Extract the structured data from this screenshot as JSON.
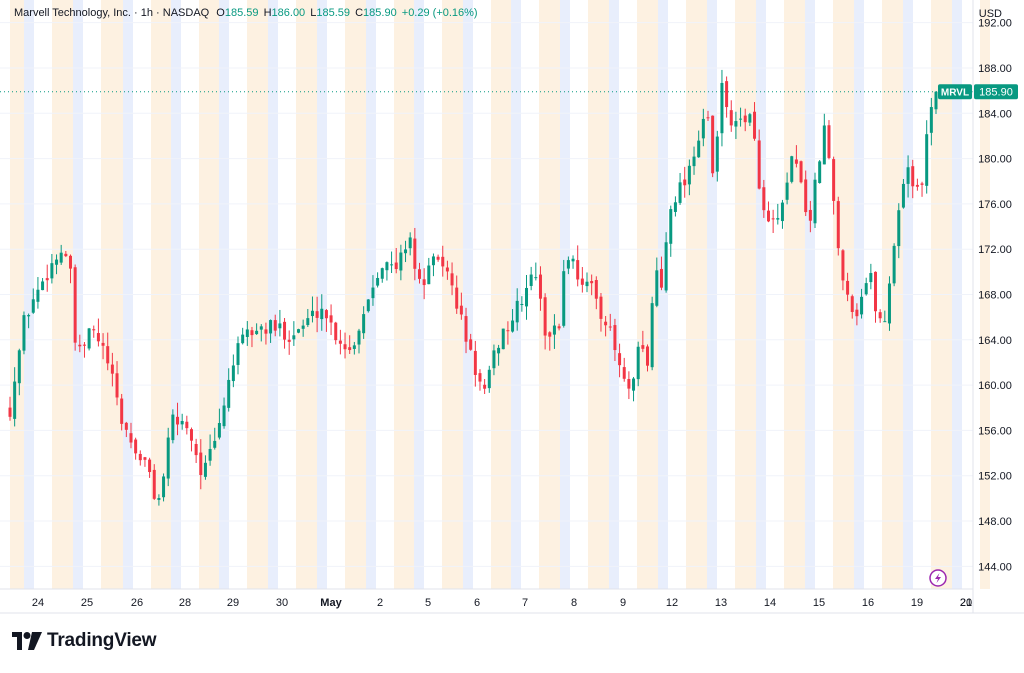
{
  "header": {
    "symbol_desc": "Marvell Technology, Inc. · 1h · NASDAQ",
    "o_label": "O",
    "o_value": "185.59",
    "h_label": "H",
    "h_value": "186.00",
    "l_label": "L",
    "l_value": "185.59",
    "c_label": "C",
    "c_value": "185.90",
    "change": "+0.29 (+0.16%)"
  },
  "currency": "USD",
  "brand": {
    "name": "TradingView",
    "icon": "tradingview-logo-icon"
  },
  "price_tag": {
    "symbol": "MRVL",
    "price": "185.90"
  },
  "colors": {
    "up": "#089981",
    "down": "#f23645",
    "premarket_band": "#fdf1e1",
    "afterhours_band": "#e8eefc",
    "grid": "#f0f3fa",
    "axis_text": "#131722",
    "accent": "#9c27b0"
  },
  "chart_data": {
    "type": "candlestick",
    "title": "",
    "symbol": "MRVL",
    "interval": "1h",
    "exchange": "NASDAQ",
    "ylim": [
      142,
      194
    ],
    "y_ticks": [
      "192.00",
      "188.00",
      "184.00",
      "180.00",
      "176.00",
      "172.00",
      "168.00",
      "164.00",
      "160.00",
      "156.00",
      "152.00",
      "148.00",
      "144.00"
    ],
    "x_ticks": [
      "24",
      "25",
      "26",
      "28",
      "29",
      "30",
      "May",
      "2",
      "5",
      "6",
      "7",
      "8",
      "9",
      "12",
      "13",
      "14",
      "15",
      "16",
      "19",
      "20",
      "21"
    ],
    "legend": "none",
    "grid": true,
    "last_price": 185.9,
    "close_path": [
      [
        0,
        158.0
      ],
      [
        2,
        166.0
      ],
      [
        5,
        170.0
      ],
      [
        7,
        172.0
      ],
      [
        8,
        171.0
      ],
      [
        9,
        162.0
      ],
      [
        11,
        165.0
      ],
      [
        13,
        162.5
      ],
      [
        15,
        157.0
      ],
      [
        17,
        154.0
      ],
      [
        18,
        153.5
      ],
      [
        20,
        149.5
      ],
      [
        22,
        157.0
      ],
      [
        24,
        156.5
      ],
      [
        26,
        152.0
      ],
      [
        28,
        155.5
      ],
      [
        30,
        162.0
      ],
      [
        32,
        164.5
      ],
      [
        34,
        165.0
      ],
      [
        36,
        165.0
      ],
      [
        38,
        164.5
      ],
      [
        40,
        165.5
      ],
      [
        42,
        167.0
      ],
      [
        44,
        164.5
      ],
      [
        46,
        163.0
      ],
      [
        48,
        167.0
      ],
      [
        50,
        171.0
      ],
      [
        52,
        170.0
      ],
      [
        54,
        173.5
      ],
      [
        55,
        168.5
      ],
      [
        57,
        170.5
      ],
      [
        58,
        171.5
      ],
      [
        60,
        168.0
      ],
      [
        62,
        163.0
      ],
      [
        64,
        159.0
      ],
      [
        66,
        164.0
      ],
      [
        68,
        166.0
      ],
      [
        70,
        169.0
      ],
      [
        71,
        170.0
      ],
      [
        72,
        165.0
      ],
      [
        74,
        164.5
      ],
      [
        75,
        172.0
      ],
      [
        77,
        169.5
      ],
      [
        79,
        168.0
      ],
      [
        81,
        164.5
      ],
      [
        83,
        160.0
      ],
      [
        84,
        159.0
      ],
      [
        85,
        164.0
      ],
      [
        86,
        161.0
      ],
      [
        87,
        170.5
      ],
      [
        88,
        168.5
      ],
      [
        89,
        176.0
      ],
      [
        91,
        178.0
      ],
      [
        93,
        182.0
      ],
      [
        94,
        184.5
      ],
      [
        95,
        177.5
      ],
      [
        96,
        186.5
      ],
      [
        97,
        184.0
      ],
      [
        98,
        182.5
      ],
      [
        99,
        184.0
      ],
      [
        100,
        183.5
      ],
      [
        102,
        174.0
      ],
      [
        104,
        174.5
      ],
      [
        106,
        181.0
      ],
      [
        107,
        176.5
      ],
      [
        108,
        174.5
      ],
      [
        110,
        183.0
      ],
      [
        111,
        177.0
      ],
      [
        112,
        171.0
      ],
      [
        114,
        166.0
      ],
      [
        116,
        170.0
      ],
      [
        117,
        166.5
      ],
      [
        118,
        165.0
      ],
      [
        119,
        171.0
      ],
      [
        120,
        175.5
      ],
      [
        121,
        180.0
      ],
      [
        122,
        177.5
      ],
      [
        123,
        176.5
      ],
      [
        124,
        184.5
      ],
      [
        125,
        185.9
      ]
    ]
  }
}
